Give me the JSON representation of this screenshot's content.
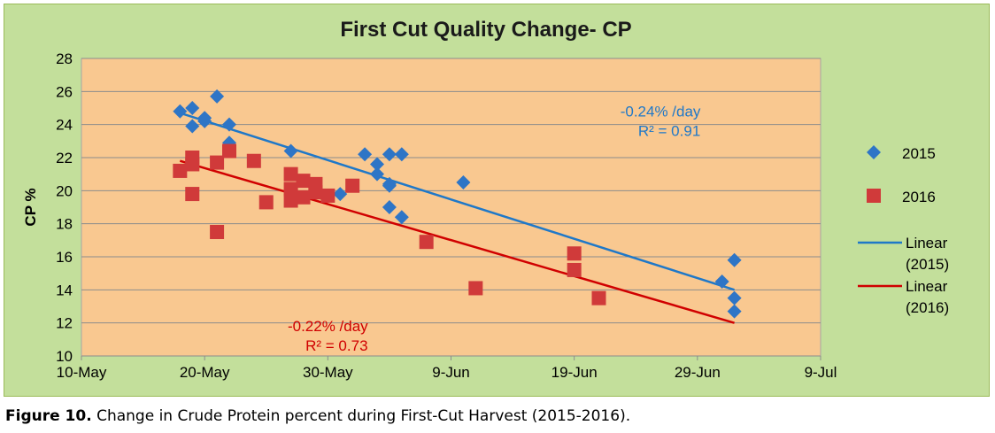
{
  "caption": {
    "label": "Figure 10.",
    "text": "Change in Crude Protein percent during First-Cut Harvest (2015-2016)."
  },
  "colors": {
    "plot_background": "#f9c890",
    "frame_background": "#c3df9b",
    "series_2015": "#2e75c6",
    "series_2016": "#d03a3a",
    "trend_2015": "#1f78c8",
    "trend_2016": "#d00000"
  },
  "chart_data": {
    "type": "scatter",
    "title": "First Cut Quality Change- CP",
    "xlabel": "",
    "ylabel": "CP %",
    "x_tick_labels": [
      "10-May",
      "20-May",
      "30-May",
      "9-Jun",
      "19-Jun",
      "29-Jun",
      "9-Jul"
    ],
    "x_ticks": [
      "2016-05-10",
      "2016-05-20",
      "2016-05-30",
      "2016-06-09",
      "2016-06-19",
      "2016-06-29",
      "2016-07-09"
    ],
    "xlim": [
      "2016-05-10",
      "2016-07-09"
    ],
    "ylim": [
      10,
      28
    ],
    "y_ticks": [
      10,
      12,
      14,
      16,
      18,
      20,
      22,
      24,
      26,
      28
    ],
    "grid": "horizontal",
    "legend": "right",
    "series": [
      {
        "name": "2015",
        "marker": "diamond",
        "points": [
          {
            "x": "2016-05-18",
            "y": 24.8
          },
          {
            "x": "2016-05-19",
            "y": 25.0
          },
          {
            "x": "2016-05-19",
            "y": 23.9
          },
          {
            "x": "2016-05-20",
            "y": 24.4
          },
          {
            "x": "2016-05-20",
            "y": 24.2
          },
          {
            "x": "2016-05-21",
            "y": 25.7
          },
          {
            "x": "2016-05-22",
            "y": 24.0
          },
          {
            "x": "2016-05-22",
            "y": 22.9
          },
          {
            "x": "2016-05-27",
            "y": 22.4
          },
          {
            "x": "2016-05-31",
            "y": 19.8
          },
          {
            "x": "2016-06-02",
            "y": 22.2
          },
          {
            "x": "2016-06-03",
            "y": 21.6
          },
          {
            "x": "2016-06-03",
            "y": 21.0
          },
          {
            "x": "2016-06-04",
            "y": 22.2
          },
          {
            "x": "2016-06-04",
            "y": 20.3
          },
          {
            "x": "2016-06-04",
            "y": 20.4
          },
          {
            "x": "2016-06-04",
            "y": 19.0
          },
          {
            "x": "2016-06-05",
            "y": 22.2
          },
          {
            "x": "2016-06-05",
            "y": 18.4
          },
          {
            "x": "2016-06-10",
            "y": 20.5
          },
          {
            "x": "2016-07-01",
            "y": 14.5
          },
          {
            "x": "2016-07-02",
            "y": 15.8
          },
          {
            "x": "2016-07-02",
            "y": 13.5
          },
          {
            "x": "2016-07-02",
            "y": 12.7
          }
        ]
      },
      {
        "name": "2016",
        "marker": "square",
        "points": [
          {
            "x": "2016-05-18",
            "y": 21.2
          },
          {
            "x": "2016-05-19",
            "y": 22.0
          },
          {
            "x": "2016-05-19",
            "y": 21.6
          },
          {
            "x": "2016-05-19",
            "y": 19.8
          },
          {
            "x": "2016-05-21",
            "y": 17.5
          },
          {
            "x": "2016-05-21",
            "y": 21.7
          },
          {
            "x": "2016-05-22",
            "y": 22.4
          },
          {
            "x": "2016-05-24",
            "y": 21.8
          },
          {
            "x": "2016-05-25",
            "y": 19.3
          },
          {
            "x": "2016-05-27",
            "y": 21.0
          },
          {
            "x": "2016-05-27",
            "y": 20.1
          },
          {
            "x": "2016-05-27",
            "y": 19.4
          },
          {
            "x": "2016-05-28",
            "y": 20.6
          },
          {
            "x": "2016-05-28",
            "y": 19.6
          },
          {
            "x": "2016-05-29",
            "y": 20.4
          },
          {
            "x": "2016-05-29",
            "y": 19.9
          },
          {
            "x": "2016-05-30",
            "y": 19.7
          },
          {
            "x": "2016-06-01",
            "y": 20.3
          },
          {
            "x": "2016-06-07",
            "y": 16.9
          },
          {
            "x": "2016-06-11",
            "y": 14.1
          },
          {
            "x": "2016-06-19",
            "y": 16.2
          },
          {
            "x": "2016-06-19",
            "y": 15.2
          },
          {
            "x": "2016-06-21",
            "y": 13.5
          }
        ]
      }
    ],
    "trendlines": [
      {
        "name": "Linear (2015)",
        "series": "2015",
        "from": {
          "x": "2016-05-18",
          "y": 24.7
        },
        "to": {
          "x": "2016-07-02",
          "y": 14.0
        },
        "label": [
          "-0.24% /day",
          "R² = 0.91"
        ]
      },
      {
        "name": "Linear (2016)",
        "series": "2016",
        "from": {
          "x": "2016-05-18",
          "y": 21.8
        },
        "to": {
          "x": "2016-07-02",
          "y": 12.0
        },
        "label": [
          "-0.22% /day",
          "R² = 0.73"
        ]
      }
    ],
    "legend_entries": [
      "2015",
      "2016",
      "Linear (2015)",
      "Linear (2016)"
    ],
    "legend_entries_wrapped": [
      [
        "2015"
      ],
      [
        "2016"
      ],
      [
        "Linear",
        "(2015)"
      ],
      [
        "Linear",
        "(2016)"
      ]
    ]
  }
}
